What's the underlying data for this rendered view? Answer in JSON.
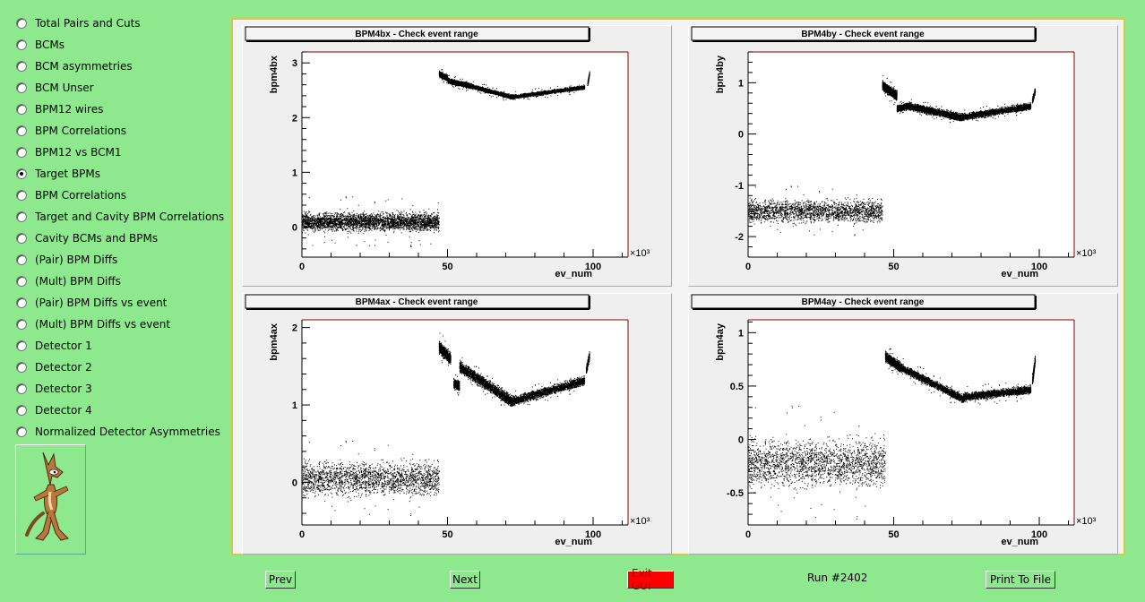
{
  "menu": {
    "selected_index": 7,
    "items": [
      "Total Pairs and Cuts",
      "BCMs",
      "BCM asymmetries",
      "BCM Unser",
      "BPM12 wires",
      "BPM Correlations",
      "BPM12 vs BCM1",
      "Target BPMs",
      "BPM Correlations",
      "Target and Cavity BPM Correlations",
      "Cavity BCMs and BPMs",
      "(Pair) BPM Diffs",
      "(Mult) BPM Diffs",
      "(Pair) BPM Diffs vs event",
      "(Mult) BPM Diffs vs event",
      "Detector 1",
      "Detector 2",
      "Detector 3",
      "Detector 4",
      "Normalized Detector Asymmetries"
    ]
  },
  "mascot": {
    "icon": "coyote-mascot-icon"
  },
  "buttons": {
    "prev": "Prev",
    "next": "Next",
    "exit": "Exit GUI",
    "print": "Print To File"
  },
  "run_label": "Run #2402",
  "colors": {
    "background": "#8ee98e",
    "exit_button": "#ff0000",
    "axis_frame": "#8b0000"
  },
  "chart_data": [
    {
      "type": "scatter",
      "title": "BPM4bx - Check event range",
      "xlabel": "ev_num",
      "ylabel": "bpm4bx",
      "x_multiplier": "×10³",
      "xlim": [
        0,
        112
      ],
      "ylim": [
        -0.55,
        3.2
      ],
      "xticks": [
        0,
        50,
        100
      ],
      "yticks": [
        0,
        1,
        2,
        3
      ],
      "segments": [
        {
          "x": [
            0,
            47
          ],
          "center": [
            0.1,
            0.1
          ],
          "halfwidth": 0.22,
          "outlier": 0.25
        },
        {
          "x": [
            47,
            50
          ],
          "center": [
            2.8,
            2.72
          ],
          "halfwidth": 0.07,
          "outlier": 0.05
        },
        {
          "x": [
            50,
            58
          ],
          "center": [
            2.68,
            2.58
          ],
          "halfwidth": 0.06,
          "outlier": 0.05
        },
        {
          "x": [
            58,
            72
          ],
          "center": [
            2.58,
            2.38
          ],
          "halfwidth": 0.05,
          "outlier": 0.05
        },
        {
          "x": [
            72,
            97
          ],
          "center": [
            2.38,
            2.56
          ],
          "halfwidth": 0.05,
          "outlier": 0.05
        },
        {
          "x": [
            98,
            98.7
          ],
          "center": [
            2.62,
            2.82
          ],
          "halfwidth": 0.06,
          "outlier": 0.0
        }
      ]
    },
    {
      "type": "scatter",
      "title": "BPM4by - Check event range",
      "xlabel": "ev_num",
      "ylabel": "bpm4by",
      "x_multiplier": "×10³",
      "xlim": [
        0,
        112
      ],
      "ylim": [
        -2.4,
        1.6
      ],
      "xticks": [
        0,
        50,
        100
      ],
      "yticks": [
        -2,
        -1,
        0,
        1
      ],
      "segments": [
        {
          "x": [
            0,
            46
          ],
          "center": [
            -1.5,
            -1.5
          ],
          "halfwidth": 0.3,
          "outlier": 0.2
        },
        {
          "x": [
            46,
            51
          ],
          "center": [
            0.95,
            0.75
          ],
          "halfwidth": 0.12,
          "outlier": 0.1
        },
        {
          "x": [
            51,
            55
          ],
          "center": [
            0.5,
            0.55
          ],
          "halfwidth": 0.08,
          "outlier": 0.05
        },
        {
          "x": [
            55,
            73
          ],
          "center": [
            0.55,
            0.33
          ],
          "halfwidth": 0.1,
          "outlier": 0.05
        },
        {
          "x": [
            73,
            97
          ],
          "center": [
            0.33,
            0.55
          ],
          "halfwidth": 0.09,
          "outlier": 0.05
        },
        {
          "x": [
            97.5,
            98.5
          ],
          "center": [
            0.65,
            0.85
          ],
          "halfwidth": 0.08,
          "outlier": 0.0
        }
      ]
    },
    {
      "type": "scatter",
      "title": "BPM4ax - Check event range",
      "xlabel": "ev_num",
      "ylabel": "bpm4ax",
      "x_multiplier": "×10³",
      "xlim": [
        0,
        112
      ],
      "ylim": [
        -0.55,
        2.1
      ],
      "xticks": [
        0,
        50,
        100
      ],
      "yticks": [
        0,
        1,
        2
      ],
      "segments": [
        {
          "x": [
            0,
            47
          ],
          "center": [
            0.05,
            0.05
          ],
          "halfwidth": 0.3,
          "outlier": 0.2
        },
        {
          "x": [
            47,
            51
          ],
          "center": [
            1.75,
            1.6
          ],
          "halfwidth": 0.1,
          "outlier": 0.1
        },
        {
          "x": [
            52,
            54
          ],
          "center": [
            1.28,
            1.25
          ],
          "halfwidth": 0.08,
          "outlier": 0.05
        },
        {
          "x": [
            54,
            72
          ],
          "center": [
            1.5,
            1.05
          ],
          "halfwidth": 0.1,
          "outlier": 0.05
        },
        {
          "x": [
            72,
            97
          ],
          "center": [
            1.05,
            1.32
          ],
          "halfwidth": 0.08,
          "outlier": 0.05
        },
        {
          "x": [
            97.5,
            98.7
          ],
          "center": [
            1.45,
            1.65
          ],
          "halfwidth": 0.08,
          "outlier": 0.0
        }
      ]
    },
    {
      "type": "scatter",
      "title": "BPM4ay - Check event range",
      "xlabel": "ev_num",
      "ylabel": "bpm4ay",
      "x_multiplier": "×10³",
      "xlim": [
        0,
        112
      ],
      "ylim": [
        -0.8,
        1.12
      ],
      "xticks": [
        0,
        50,
        100
      ],
      "yticks": [
        -0.5,
        0,
        0.5,
        1
      ],
      "segments": [
        {
          "x": [
            0,
            47
          ],
          "center": [
            -0.22,
            -0.22
          ],
          "halfwidth": 0.3,
          "outlier": 0.25
        },
        {
          "x": [
            47,
            52
          ],
          "center": [
            0.78,
            0.68
          ],
          "halfwidth": 0.06,
          "outlier": 0.05
        },
        {
          "x": [
            52,
            74
          ],
          "center": [
            0.68,
            0.38
          ],
          "halfwidth": 0.05,
          "outlier": 0.05
        },
        {
          "x": [
            74,
            97
          ],
          "center": [
            0.4,
            0.47
          ],
          "halfwidth": 0.05,
          "outlier": 0.05
        },
        {
          "x": [
            97.5,
            98.5
          ],
          "center": [
            0.55,
            0.75
          ],
          "halfwidth": 0.07,
          "outlier": 0.0
        }
      ]
    }
  ]
}
